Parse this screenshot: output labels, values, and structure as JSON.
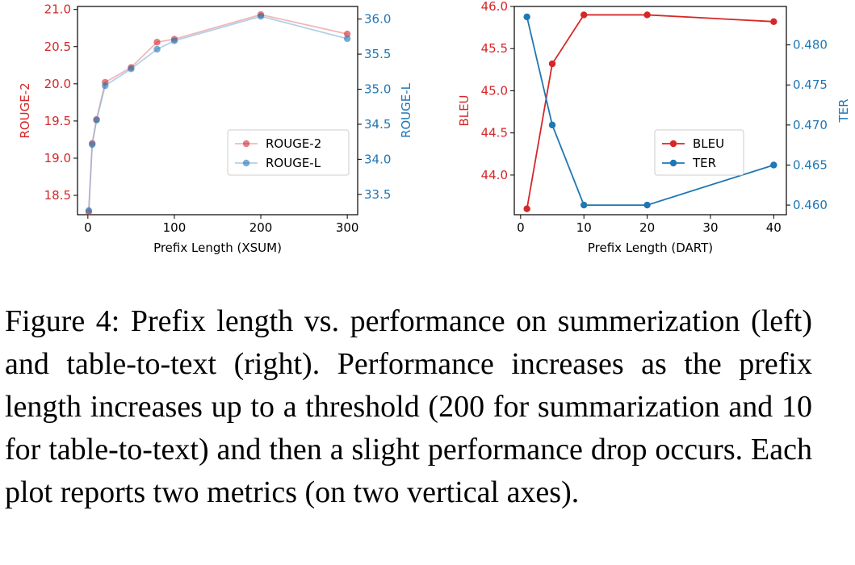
{
  "chart_data": [
    {
      "type": "line",
      "xlabel": "Prefix Length (XSUM)",
      "xlim": [
        -12,
        312
      ],
      "xticks": [
        0,
        100,
        200,
        300
      ],
      "left_axis": {
        "label": "ROUGE-2",
        "color": "#d62728",
        "lim": [
          18.24,
          21.04
        ],
        "ticks": [
          "18.5",
          "19.0",
          "19.5",
          "20.0",
          "20.5",
          "21.0"
        ]
      },
      "right_axis": {
        "label": "ROUGE-L",
        "color": "#1f77b4",
        "lim": [
          33.21,
          36.18
        ],
        "ticks": [
          "33.5",
          "34.0",
          "34.5",
          "35.0",
          "35.5",
          "36.0"
        ]
      },
      "legend_position": "center-right",
      "series": [
        {
          "name": "ROUGE-2",
          "axis": "left",
          "color": "#d62728",
          "x": [
            1,
            5,
            10,
            20,
            50,
            80,
            100,
            200,
            300
          ],
          "y": [
            18.28,
            19.2,
            19.52,
            20.02,
            20.22,
            20.56,
            20.6,
            20.93,
            20.67
          ]
        },
        {
          "name": "ROUGE-L",
          "axis": "right",
          "color": "#1f77b4",
          "x": [
            1,
            5,
            10,
            20,
            50,
            80,
            100,
            200,
            300
          ],
          "y": [
            33.27,
            34.21,
            34.56,
            35.05,
            35.29,
            35.57,
            35.69,
            36.04,
            35.72
          ]
        }
      ]
    },
    {
      "type": "line",
      "xlabel": "Prefix Length (DART)",
      "xlim": [
        -1,
        42
      ],
      "xticks": [
        0,
        10,
        20,
        30,
        40
      ],
      "left_axis": {
        "label": "BLEU",
        "color": "#d62728",
        "lim": [
          43.53,
          46.0
        ],
        "ticks": [
          "44.0",
          "44.5",
          "45.0",
          "45.5",
          "46.0"
        ]
      },
      "right_axis": {
        "label": "TER",
        "color": "#1f77b4",
        "lim": [
          0.4588,
          0.4848
        ],
        "ticks": [
          "0.460",
          "0.465",
          "0.470",
          "0.475",
          "0.480"
        ]
      },
      "legend_position": "center-right",
      "series": [
        {
          "name": "BLEU",
          "axis": "left",
          "color": "#d62728",
          "x": [
            1,
            5,
            10,
            20,
            40
          ],
          "y": [
            43.6,
            45.32,
            45.9,
            45.9,
            45.82
          ]
        },
        {
          "name": "TER",
          "axis": "right",
          "color": "#1f77b4",
          "x": [
            1,
            5,
            10,
            20,
            40
          ],
          "y": [
            0.4835,
            0.47,
            0.46,
            0.46,
            0.465
          ]
        }
      ]
    }
  ],
  "caption": "Figure 4:  Prefix length vs. performance on summerization (left) and table-to-text (right). Performance increases as the prefix length increases up to a threshold (200 for summarization and 10 for table-to-text) and then a slight performance drop occurs. Each plot reports two metrics (on two vertical axes)."
}
